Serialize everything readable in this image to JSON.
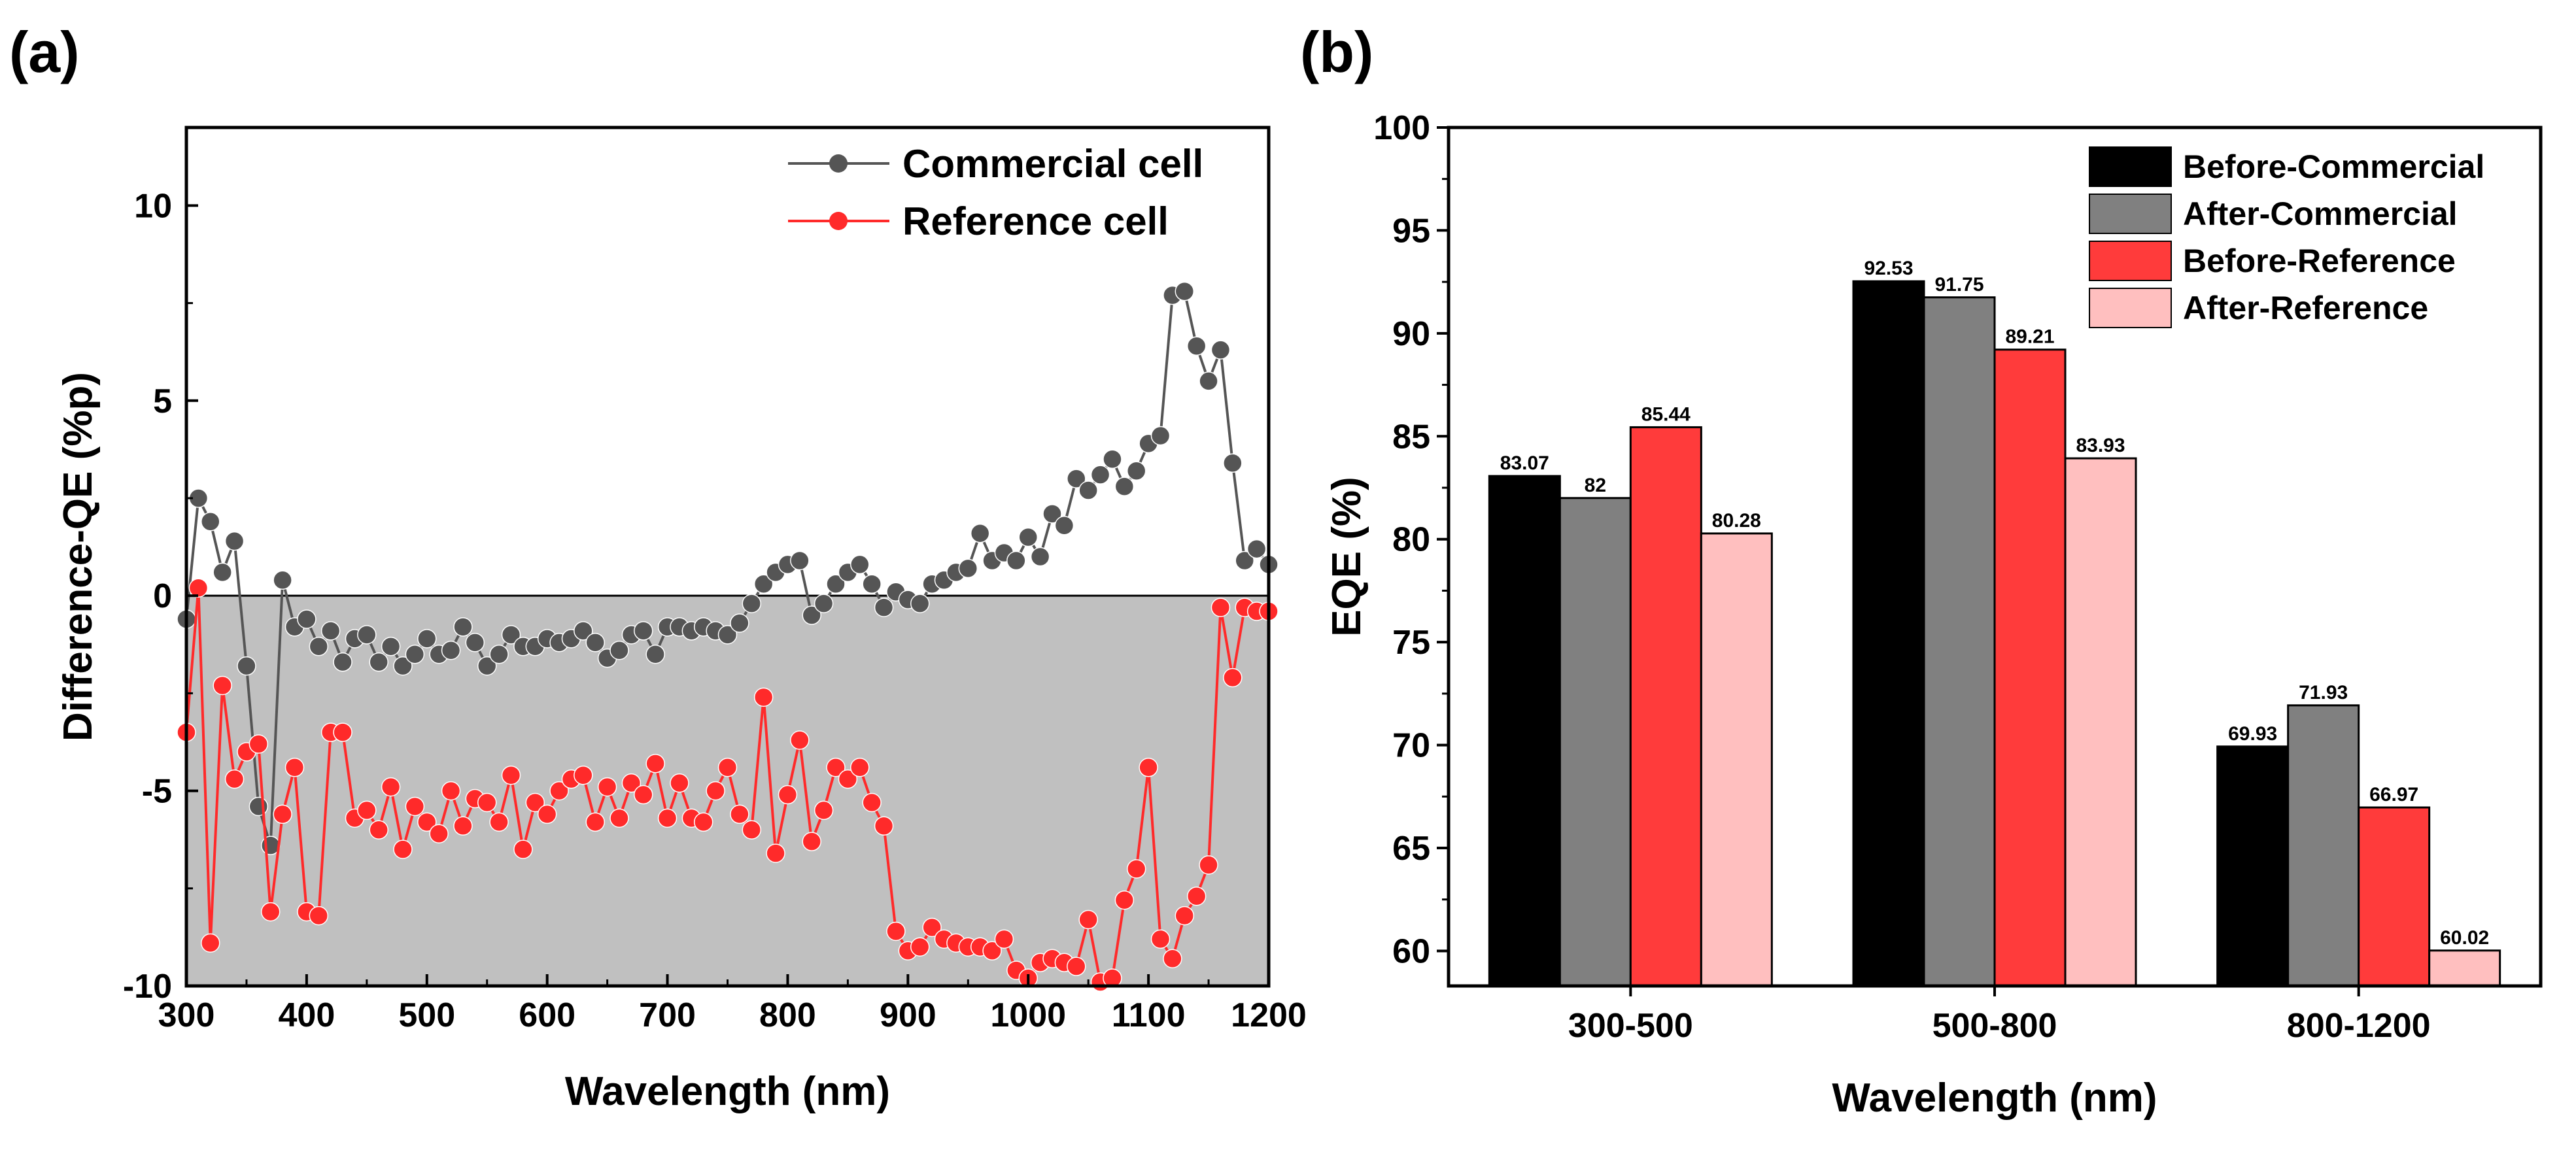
{
  "chart_data": [
    {
      "panel": "(a)",
      "type": "line",
      "xlabel": "Wavelength (nm)",
      "ylabel": "Difference-QE (%p)",
      "xlim": [
        300,
        1200
      ],
      "ylim": [
        -10,
        12
      ],
      "xticks": [
        300,
        400,
        500,
        600,
        700,
        800,
        900,
        1000,
        1100,
        1200
      ],
      "yticks": [
        -10,
        -5,
        0,
        5,
        10
      ],
      "ytick_labels": [
        "-10",
        "-5",
        "0",
        "5",
        "10"
      ],
      "shaded_region": {
        "y_from": -10,
        "y_to": 0,
        "color": "#c0c0c0"
      },
      "zero_line": 0,
      "legend_position": "top-right",
      "series": [
        {
          "name": "Commercial cell",
          "color": "#555555",
          "x": [
            300,
            310,
            320,
            330,
            340,
            350,
            360,
            370,
            380,
            390,
            400,
            410,
            420,
            430,
            440,
            450,
            460,
            470,
            480,
            490,
            500,
            510,
            520,
            530,
            540,
            550,
            560,
            570,
            580,
            590,
            600,
            610,
            620,
            630,
            640,
            650,
            660,
            670,
            680,
            690,
            700,
            710,
            720,
            730,
            740,
            750,
            760,
            770,
            780,
            790,
            800,
            810,
            820,
            830,
            840,
            850,
            860,
            870,
            880,
            890,
            900,
            910,
            920,
            930,
            940,
            950,
            960,
            970,
            980,
            990,
            1000,
            1010,
            1020,
            1030,
            1040,
            1050,
            1060,
            1070,
            1080,
            1090,
            1100,
            1110,
            1120,
            1130,
            1140,
            1150,
            1160,
            1170,
            1180,
            1190,
            1200
          ],
          "y": [
            -0.6,
            2.5,
            1.9,
            0.6,
            1.4,
            -1.8,
            -5.4,
            -6.4,
            0.4,
            -0.8,
            -0.6,
            -1.3,
            -0.9,
            -1.7,
            -1.1,
            -1.0,
            -1.7,
            -1.3,
            -1.8,
            -1.5,
            -1.1,
            -1.5,
            -1.4,
            -0.8,
            -1.2,
            -1.8,
            -1.5,
            -1.0,
            -1.3,
            -1.3,
            -1.1,
            -1.2,
            -1.1,
            -0.9,
            -1.2,
            -1.6,
            -1.4,
            -1.0,
            -0.9,
            -1.5,
            -0.8,
            -0.8,
            -0.9,
            -0.8,
            -0.9,
            -1.0,
            -0.7,
            -0.2,
            0.3,
            0.6,
            0.8,
            0.9,
            -0.5,
            -0.2,
            0.3,
            0.6,
            0.8,
            0.3,
            -0.3,
            0.1,
            -0.1,
            -0.2,
            0.3,
            0.4,
            0.6,
            0.7,
            1.6,
            0.9,
            1.1,
            0.9,
            1.5,
            1.0,
            2.1,
            1.8,
            3.0,
            2.7,
            3.1,
            3.5,
            2.8,
            3.2,
            3.9,
            4.1,
            7.7,
            7.8,
            6.4,
            5.5,
            6.3,
            3.4,
            0.9,
            1.2,
            0.8
          ]
        },
        {
          "name": "Reference cell",
          "color": "#ff2a2a",
          "x": [
            300,
            310,
            320,
            330,
            340,
            350,
            360,
            370,
            380,
            390,
            400,
            410,
            420,
            430,
            440,
            450,
            460,
            470,
            480,
            490,
            500,
            510,
            520,
            530,
            540,
            550,
            560,
            570,
            580,
            590,
            600,
            610,
            620,
            630,
            640,
            650,
            660,
            670,
            680,
            690,
            700,
            710,
            720,
            730,
            740,
            750,
            760,
            770,
            780,
            790,
            800,
            810,
            820,
            830,
            840,
            850,
            860,
            870,
            880,
            890,
            900,
            910,
            920,
            930,
            940,
            950,
            960,
            970,
            980,
            990,
            1000,
            1010,
            1020,
            1030,
            1040,
            1050,
            1060,
            1070,
            1080,
            1090,
            1100,
            1110,
            1120,
            1130,
            1140,
            1150,
            1160,
            1170,
            1180,
            1190,
            1200
          ],
          "y": [
            -3.5,
            0.2,
            -8.9,
            -2.3,
            -4.7,
            -4.0,
            -3.8,
            -8.1,
            -5.6,
            -4.4,
            -8.1,
            -8.2,
            -3.5,
            -3.5,
            -5.7,
            -5.5,
            -6.0,
            -4.9,
            -6.5,
            -5.4,
            -5.8,
            -6.1,
            -5.0,
            -5.9,
            -5.2,
            -5.3,
            -5.8,
            -4.6,
            -6.5,
            -5.3,
            -5.6,
            -5.0,
            -4.7,
            -4.6,
            -5.8,
            -4.9,
            -5.7,
            -4.8,
            -5.1,
            -4.3,
            -5.7,
            -4.8,
            -5.7,
            -5.8,
            -5.0,
            -4.4,
            -5.6,
            -6.0,
            -2.6,
            -6.6,
            -5.1,
            -3.7,
            -6.3,
            -5.5,
            -4.4,
            -4.7,
            -4.4,
            -5.3,
            -5.9,
            -8.6,
            -9.1,
            -9.0,
            -8.5,
            -8.8,
            -8.9,
            -9.0,
            -9.0,
            -9.1,
            -8.8,
            -9.6,
            -9.8,
            -9.4,
            -9.3,
            -9.4,
            -9.5,
            -8.3,
            -9.9,
            -9.8,
            -7.8,
            -7.0,
            -4.4,
            -8.8,
            -9.3,
            -8.2,
            -7.7,
            -6.9,
            -0.3,
            -2.1,
            -0.3,
            -0.4,
            -0.4
          ]
        }
      ]
    },
    {
      "panel": "(b)",
      "type": "bar",
      "xlabel": "Wavelength (nm)",
      "ylabel": "EQE (%)",
      "ylim": [
        58.3,
        100
      ],
      "yticks": [
        60,
        65,
        70,
        75,
        80,
        85,
        90,
        95,
        100
      ],
      "categories": [
        "300-500",
        "500-800",
        "800-1200"
      ],
      "legend_position": "top-right",
      "series": [
        {
          "name": "Before-Commercial",
          "color": "#000000",
          "values": [
            83.07,
            92.53,
            69.93
          ],
          "labels": [
            "83.07",
            "92.53",
            "69.93"
          ]
        },
        {
          "name": "After-Commercial",
          "color": "#808080",
          "values": [
            82,
            91.75,
            71.93
          ],
          "labels": [
            "82",
            "91.75",
            "71.93"
          ]
        },
        {
          "name": "Before-Reference",
          "color": "#ff3b3b",
          "values": [
            85.44,
            89.21,
            66.97
          ],
          "labels": [
            "85.44",
            "89.21",
            "66.97"
          ]
        },
        {
          "name": "After-Reference",
          "color": "#ffbfbf",
          "values": [
            80.28,
            83.93,
            60.02
          ],
          "labels": [
            "80.28",
            "83.93",
            "60.02"
          ]
        }
      ]
    }
  ]
}
